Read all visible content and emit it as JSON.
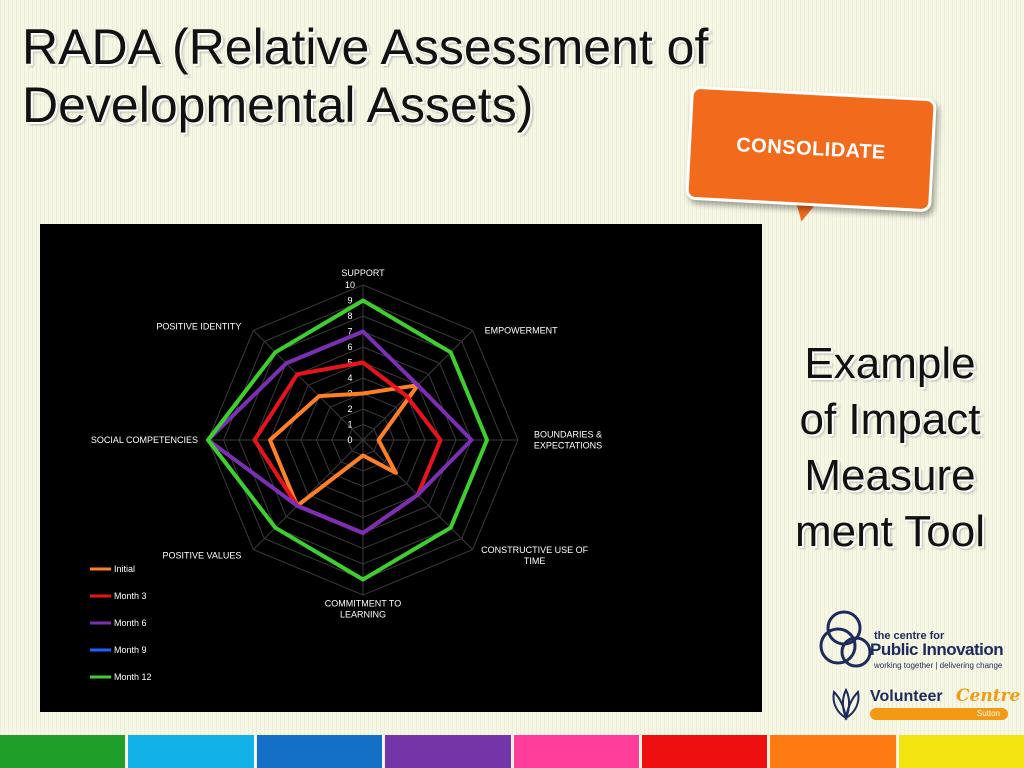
{
  "slide": {
    "title": "RADA (Relative Assessment of Developmental Assets)",
    "callout": "CONSOLIDATE",
    "side_text": [
      "Example",
      "of Impact",
      "Measure",
      "ment Tool"
    ]
  },
  "logos": {
    "cpi": {
      "line1": "the centre for",
      "line2": "Public Innovation",
      "line3": "working together | delivering change"
    },
    "vc": {
      "text1": "Volunteer",
      "text2": "Centre",
      "sub": "Sutton"
    }
  },
  "colors": {
    "background": "#f7f7e6",
    "callout": "#f26b1d",
    "stripes": [
      "#1f9e2a",
      "#12b1e8",
      "#1470c7",
      "#7435a8",
      "#ff3d9a",
      "#ee1010",
      "#ff7a12",
      "#f4e411"
    ]
  },
  "chart_data": {
    "type": "radar",
    "axes": [
      "SUPPORT",
      "EMPOWERMENT",
      "BOUNDARIES & EXPECTATIONS",
      "CONSTRUCTIVE USE OF TIME",
      "COMMITMENT TO LEARNING",
      "POSITIVE VALUES",
      "SOCIAL COMPETENCIES",
      "POSITIVE IDENTITY"
    ],
    "axis_label_lines": [
      [
        "SUPPORT"
      ],
      [
        "EMPOWERMENT"
      ],
      [
        "BOUNDARIES &",
        "EXPECTATIONS"
      ],
      [
        "CONSTRUCTIVE USE OF",
        "TIME"
      ],
      [
        "COMMITMENT TO",
        "LEARNING"
      ],
      [
        "POSITIVE VALUES"
      ],
      [
        "SOCIAL COMPETENCIES"
      ],
      [
        "POSITIVE IDENTITY"
      ]
    ],
    "rlim": [
      0,
      10
    ],
    "ticks": [
      "0",
      "1",
      "2",
      "3",
      "4",
      "5",
      "6",
      "7",
      "8",
      "9",
      "10"
    ],
    "grid": true,
    "legend_position": "bottom-left",
    "series": [
      {
        "name": "Initial",
        "color": "#ff7f27",
        "values": [
          3,
          5,
          1,
          3,
          1,
          6,
          6,
          4
        ]
      },
      {
        "name": "Month 3",
        "color": "#e8141c",
        "values": [
          5,
          4,
          5,
          5,
          6,
          6,
          7,
          6
        ]
      },
      {
        "name": "Month 6",
        "color": "#7b2fb5",
        "values": [
          7,
          5,
          7,
          5,
          6,
          6,
          10,
          7
        ]
      },
      {
        "name": "Month 9",
        "color": "#1f5fff",
        "values": []
      },
      {
        "name": "Month 12",
        "color": "#3ecf2e",
        "values": [
          9,
          8,
          8,
          8,
          9,
          8,
          10,
          8
        ]
      }
    ]
  }
}
